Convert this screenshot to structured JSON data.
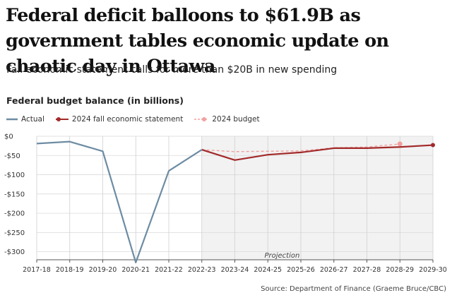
{
  "headline": "Federal deficit balloons to $61.9B as government tables economic update on chaotic day in Ottawa",
  "subheadline": "Fall economic statement calls for more than $20B in new spending",
  "source": "Source: Department of Finance (Graeme Bruce/CBC)",
  "chart_data": {
    "type": "line",
    "title": "Federal budget balance (in billions)",
    "categories": [
      "2017-18",
      "2018-19",
      "2019-20",
      "2020-21",
      "2021-22",
      "2022-23",
      "2023-24",
      "2024-25",
      "2025-26",
      "2026-27",
      "2027-28",
      "2028-29",
      "2029-30"
    ],
    "ylim": [
      -330,
      0
    ],
    "yticks": [
      0,
      -50,
      -100,
      -150,
      -200,
      -250,
      -300
    ],
    "ytick_labels": [
      "$0",
      "-$50",
      "-$100",
      "-$150",
      "-$200",
      "-$250",
      "-$300"
    ],
    "grid": true,
    "legend_position": "top-left",
    "shaded_region": {
      "from": "2022-23",
      "to": "2029-30",
      "label": "Projection"
    },
    "series": [
      {
        "name": "Actual",
        "color": "#6d8ca3",
        "style": "solid",
        "values": [
          -19,
          -14,
          -39,
          -328,
          -90,
          -35,
          null,
          null,
          null,
          null,
          null,
          null,
          null
        ]
      },
      {
        "name": "2024 fall economic statement",
        "color": "#a32a2a",
        "style": "solid",
        "values": [
          null,
          null,
          null,
          null,
          null,
          -35,
          -62,
          -48,
          -42,
          -31,
          -31,
          -28,
          -23
        ]
      },
      {
        "name": "2024 budget",
        "color": "#f0a0a0",
        "style": "dashed",
        "values": [
          null,
          null,
          null,
          null,
          null,
          -35,
          -40,
          -39,
          -38,
          -30,
          -28,
          -20,
          null
        ]
      }
    ]
  }
}
